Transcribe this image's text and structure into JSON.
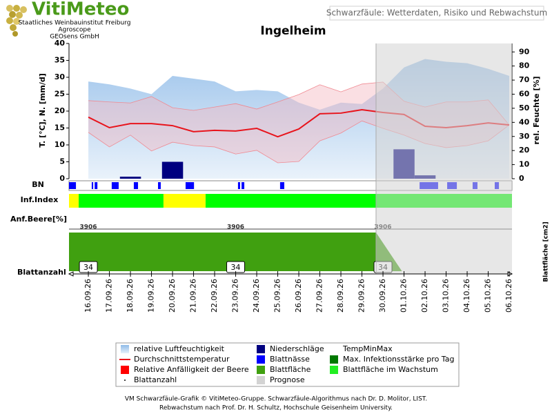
{
  "header": {
    "logo": "VitiMeteo",
    "org_lines": [
      "Staatliches Weinbauinstitut Freiburg",
      "Agroscope",
      "GEOsens GmbH"
    ],
    "subtitle": "Schwarzfäule: Wetterdaten, Risiko und Rebwachstum"
  },
  "chart_data": {
    "type": "agro-meteo",
    "title": "Ingelheim",
    "categories": [
      "16.09.26",
      "17.09.26",
      "18.09.26",
      "19.09.26",
      "20.09.26",
      "21.09.26",
      "22.09.26",
      "23.09.26",
      "24.09.26",
      "25.09.26",
      "26.09.26",
      "27.09.26",
      "28.09.26",
      "29.09.26",
      "30.09.26",
      "01.10.26",
      "02.10.26",
      "03.10.26",
      "04.10.26",
      "05.10.26",
      "06.10.26"
    ],
    "xlim": [
      -0.92,
      20.13
    ],
    "ylabel": "T. [°C], N. [mm/d]",
    "y2label": "rel. Feuchte [%]",
    "ylim": [
      0,
      40
    ],
    "yticks": [
      0,
      5,
      10,
      15,
      20,
      25,
      30,
      35,
      40
    ],
    "y2lim": [
      0,
      96
    ],
    "y2ticks": [
      0,
      10,
      20,
      30,
      40,
      50,
      60,
      70,
      80,
      90
    ],
    "series": [
      {
        "name": "relative Luftfeuchtigkeit",
        "color": "#9cc3ea",
        "kind": "area",
        "axis": "y2",
        "values": [
          69,
          67,
          64,
          60,
          73,
          71,
          69,
          62,
          63,
          62,
          54,
          49,
          54,
          53,
          64,
          79,
          85,
          83,
          82,
          78,
          73
        ]
      },
      {
        "name": "Niederschläge",
        "color": "#000080",
        "kind": "bar",
        "values": [
          0,
          0,
          0.6,
          0,
          5,
          0,
          0,
          0,
          0,
          0,
          0,
          0,
          0,
          0,
          0,
          8.7,
          1,
          0,
          0,
          0,
          0
        ]
      },
      {
        "name": "TempMinMax",
        "color": "#f4b8c0",
        "kind": "band",
        "values": [
          23.1,
          22.7,
          22.4,
          24.3,
          21,
          20.2,
          21.2,
          22.2,
          20.6,
          22.7,
          24.9,
          27.8,
          25.7,
          28,
          28.6,
          22.9,
          21.2,
          22.7,
          22.7,
          23.3,
          15.9
        ],
        "values_min": [
          13.7,
          9.4,
          12.9,
          8.2,
          10.8,
          9.8,
          9.4,
          7.3,
          8.4,
          4.7,
          5.1,
          11.2,
          13.5,
          17.1,
          14.9,
          12.9,
          10.4,
          9.2,
          9.8,
          11.2,
          15.9
        ]
      },
      {
        "name": "Durchschnittstemperatur",
        "color": "#e8141c",
        "kind": "line",
        "values": [
          18.2,
          15.1,
          16.3,
          16.3,
          15.7,
          13.9,
          14.3,
          14.1,
          14.9,
          12.4,
          14.7,
          19.2,
          19.4,
          20.4,
          19.6,
          19,
          15.5,
          15.1,
          15.7,
          16.5,
          15.9
        ]
      }
    ],
    "leaf_wetness": {
      "label": "BN",
      "name": "Blattnässe",
      "color": "#0000ff",
      "intervals": [
        [
          -0.92,
          -0.59
        ],
        [
          0.16,
          0.23
        ],
        [
          0.3,
          0.43
        ],
        [
          1.11,
          1.44
        ],
        [
          2.16,
          2.36
        ],
        [
          3.31,
          3.44
        ],
        [
          4.62,
          5.02
        ],
        [
          7.11,
          7.21
        ],
        [
          7.28,
          7.41
        ],
        [
          9.11,
          9.31
        ],
        [
          15.74,
          16.62
        ],
        [
          17.05,
          17.51
        ],
        [
          18.26,
          18.49
        ],
        [
          19.31,
          19.51
        ]
      ]
    },
    "infection": {
      "label": "Inf.Index",
      "name": "Max. Infektionsstärke pro Tag",
      "color": "#007800",
      "segments": [
        {
          "from": -0.92,
          "to": -0.46,
          "color": "#ffff00"
        },
        {
          "from": -0.46,
          "to": 3.57,
          "color": "#00ff00"
        },
        {
          "from": 3.57,
          "to": 5.57,
          "color": "#ffff00"
        },
        {
          "from": 5.57,
          "to": 20.13,
          "color": "#00ff00"
        }
      ]
    },
    "berry": {
      "label": "Anf.Beere[%]",
      "name": "Relative Anfälligkeit der Beere",
      "color": "#ff0000"
    },
    "leaf_area": {
      "name": "Blattfläche",
      "color": "#40a010",
      "axis_label": "Blattfläche [cm2]",
      "ylim": [
        0,
        3906
      ],
      "x": [
        -0.92,
        13.67,
        14.9,
        20.13
      ],
      "values": [
        3906,
        3906,
        0,
        0
      ],
      "label_x": [
        0,
        7,
        14
      ],
      "label_values": [
        3906,
        3906,
        3906
      ]
    },
    "leaf_growth": {
      "name": "Blattfläche im Wachstum",
      "color": "#22ee22"
    },
    "leaf_count": {
      "name": "Blattanzahl",
      "label": "Blattanzahl",
      "x": [
        0,
        7,
        14
      ],
      "values": [
        34,
        34,
        34
      ]
    },
    "forecast": {
      "name": "Prognose",
      "color": "#d3d3d3",
      "from": 13.67
    }
  },
  "footer": [
    "VM Schwarzfäule-Grafik © VitiMeteo-Gruppe. Schwarzfäule-Algorithmus nach Dr. D. Molitor, LIST.",
    "Rebwachstum nach Prof. Dr. H. Schultz, Hochschule Geisenheim University."
  ]
}
